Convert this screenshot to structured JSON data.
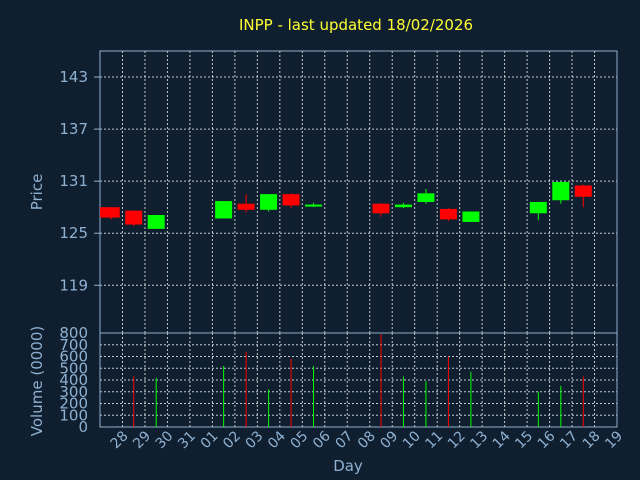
{
  "chart_data": {
    "type": "candlestick",
    "title": "INPP - last updated 18/02/2026",
    "xlabel": "Day",
    "price_panel": {
      "ylabel": "Price",
      "yticks": [
        "143",
        "137",
        "131",
        "125",
        "119"
      ],
      "ylim": [
        113.5,
        146
      ]
    },
    "volume_panel": {
      "ylabel": "Volume (0000)",
      "yticks": [
        "800",
        "700",
        "600",
        "500",
        "400",
        "300",
        "200",
        "100",
        "0"
      ],
      "ylim": [
        0,
        800
      ]
    },
    "days": [
      "28",
      "29",
      "30",
      "31",
      "01",
      "02",
      "03",
      "04",
      "05",
      "06",
      "07",
      "08",
      "09",
      "10",
      "11",
      "12",
      "13",
      "14",
      "15",
      "16",
      "17",
      "18",
      "19"
    ],
    "candles": [
      {
        "day": "28",
        "open": 128.0,
        "close": 126.8,
        "high": 128.0,
        "low": 126.6,
        "volume": 0
      },
      {
        "day": "29",
        "open": 127.6,
        "close": 126.0,
        "high": 127.6,
        "low": 125.8,
        "volume": 430
      },
      {
        "day": "30",
        "open": 125.5,
        "close": 127.1,
        "high": 127.1,
        "low": 125.5,
        "volume": 420
      },
      {
        "day": "02",
        "open": 126.7,
        "close": 128.7,
        "high": 128.7,
        "low": 126.7,
        "volume": 520
      },
      {
        "day": "03",
        "open": 128.4,
        "close": 127.7,
        "high": 129.5,
        "low": 127.4,
        "volume": 640
      },
      {
        "day": "04",
        "open": 127.7,
        "close": 129.5,
        "high": 129.5,
        "low": 127.5,
        "volume": 320
      },
      {
        "day": "05",
        "open": 129.5,
        "close": 128.2,
        "high": 129.6,
        "low": 127.9,
        "volume": 580
      },
      {
        "day": "06",
        "open": 128.1,
        "close": 128.3,
        "high": 128.5,
        "low": 128.0,
        "volume": 520
      },
      {
        "day": "09",
        "open": 128.4,
        "close": 127.3,
        "high": 128.5,
        "low": 126.9,
        "volume": 790
      },
      {
        "day": "10",
        "open": 128.0,
        "close": 128.3,
        "high": 128.5,
        "low": 127.9,
        "volume": 430
      },
      {
        "day": "11",
        "open": 128.6,
        "close": 129.6,
        "high": 130.1,
        "low": 128.4,
        "volume": 390
      },
      {
        "day": "12",
        "open": 127.8,
        "close": 126.6,
        "high": 127.9,
        "low": 126.4,
        "volume": 600
      },
      {
        "day": "13",
        "open": 126.3,
        "close": 127.5,
        "high": 127.5,
        "low": 126.3,
        "volume": 470
      },
      {
        "day": "16",
        "open": 127.3,
        "close": 128.6,
        "high": 128.6,
        "low": 126.5,
        "volume": 300
      },
      {
        "day": "17",
        "open": 128.8,
        "close": 130.9,
        "high": 131.0,
        "low": 128.4,
        "volume": 350
      },
      {
        "day": "18",
        "open": 130.5,
        "close": 129.2,
        "high": 130.6,
        "low": 128.0,
        "volume": 430
      }
    ],
    "colors": {
      "up": "#00ff00",
      "down": "#ff0000",
      "background": "#0f1f30",
      "grid": "#e6e6e6",
      "axis": "#8fb1d1",
      "title": "#ffff33"
    },
    "grid": true
  }
}
